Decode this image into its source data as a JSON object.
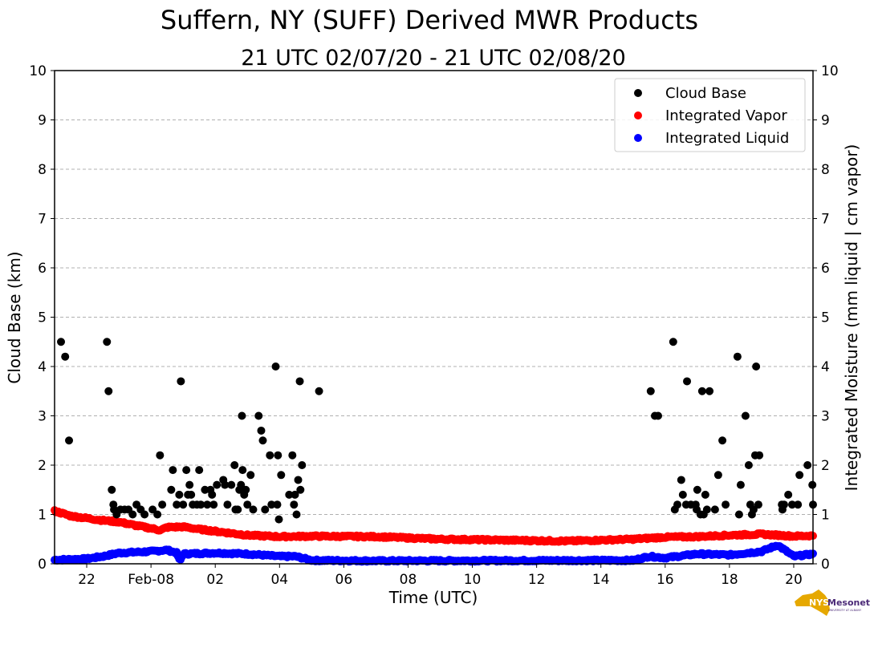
{
  "chart_data": {
    "type": "scatter",
    "title": "Suffern, NY (SUFF) Derived MWR Products",
    "subtitle": "21 UTC 02/07/20 - 21 UTC 02/08/20",
    "xlabel": "Time (UTC)",
    "ylabel": "Cloud Base (km)",
    "ylabel_right": "Integrated Moisture (mm liquid | cm vapor)",
    "x_units": "hours after 21 UTC 02/07/20",
    "xlim": [
      0,
      23.6
    ],
    "ylim": [
      0,
      10
    ],
    "ylim_right": [
      0,
      10
    ],
    "grid": true,
    "legend_position": "top-right",
    "x_ticks": [
      {
        "x": 1,
        "label": "22"
      },
      {
        "x": 3,
        "label": "Feb-08"
      },
      {
        "x": 5,
        "label": "02"
      },
      {
        "x": 7,
        "label": "04"
      },
      {
        "x": 9,
        "label": "06"
      },
      {
        "x": 11,
        "label": "08"
      },
      {
        "x": 13,
        "label": "10"
      },
      {
        "x": 15,
        "label": "12"
      },
      {
        "x": 17,
        "label": "14"
      },
      {
        "x": 19,
        "label": "16"
      },
      {
        "x": 21,
        "label": "18"
      },
      {
        "x": 23,
        "label": "20"
      }
    ],
    "y_ticks": [
      "0",
      "1",
      "2",
      "3",
      "4",
      "5",
      "6",
      "7",
      "8",
      "9",
      "10"
    ],
    "series": [
      {
        "name": "Cloud Base",
        "color": "#000000",
        "points": [
          [
            0.2,
            4.5
          ],
          [
            0.33,
            4.2
          ],
          [
            0.45,
            2.5
          ],
          [
            1.63,
            4.5
          ],
          [
            1.68,
            3.5
          ],
          [
            1.78,
            1.5
          ],
          [
            1.83,
            1.2
          ],
          [
            1.85,
            1.1
          ],
          [
            1.93,
            1.0
          ],
          [
            2.05,
            1.1
          ],
          [
            2.18,
            1.1
          ],
          [
            2.3,
            1.1
          ],
          [
            2.43,
            1.0
          ],
          [
            2.55,
            1.2
          ],
          [
            2.68,
            1.1
          ],
          [
            2.8,
            1.0
          ],
          [
            3.05,
            1.1
          ],
          [
            3.2,
            1.0
          ],
          [
            3.28,
            2.2
          ],
          [
            3.35,
            1.2
          ],
          [
            3.63,
            1.5
          ],
          [
            3.68,
            1.9
          ],
          [
            3.8,
            1.2
          ],
          [
            3.88,
            1.4
          ],
          [
            3.93,
            3.7
          ],
          [
            4.0,
            1.2
          ],
          [
            4.1,
            1.9
          ],
          [
            4.15,
            1.4
          ],
          [
            4.2,
            1.6
          ],
          [
            4.25,
            1.4
          ],
          [
            4.3,
            1.2
          ],
          [
            4.43,
            1.2
          ],
          [
            4.5,
            1.9
          ],
          [
            4.55,
            1.2
          ],
          [
            4.68,
            1.5
          ],
          [
            4.75,
            1.2
          ],
          [
            4.85,
            1.5
          ],
          [
            4.9,
            1.4
          ],
          [
            4.95,
            1.2
          ],
          [
            5.05,
            1.6
          ],
          [
            5.25,
            1.7
          ],
          [
            5.3,
            1.6
          ],
          [
            5.38,
            1.2
          ],
          [
            5.5,
            1.6
          ],
          [
            5.6,
            2.0
          ],
          [
            5.63,
            1.1
          ],
          [
            5.7,
            1.1
          ],
          [
            5.75,
            1.5
          ],
          [
            5.8,
            1.6
          ],
          [
            5.83,
            3.0
          ],
          [
            5.85,
            1.9
          ],
          [
            5.9,
            1.4
          ],
          [
            5.95,
            1.5
          ],
          [
            6.0,
            1.2
          ],
          [
            6.1,
            1.8
          ],
          [
            6.18,
            1.1
          ],
          [
            6.35,
            3.0
          ],
          [
            6.43,
            2.7
          ],
          [
            6.48,
            2.5
          ],
          [
            6.55,
            1.1
          ],
          [
            6.7,
            2.2
          ],
          [
            6.75,
            1.2
          ],
          [
            6.88,
            4.0
          ],
          [
            6.93,
            1.2
          ],
          [
            6.95,
            2.2
          ],
          [
            6.98,
            0.9
          ],
          [
            7.05,
            1.8
          ],
          [
            7.3,
            1.4
          ],
          [
            7.4,
            2.2
          ],
          [
            7.45,
            1.2
          ],
          [
            7.48,
            1.4
          ],
          [
            7.53,
            1.0
          ],
          [
            7.58,
            1.7
          ],
          [
            7.63,
            3.7
          ],
          [
            7.65,
            1.5
          ],
          [
            7.7,
            2.0
          ],
          [
            8.23,
            3.5
          ],
          [
            18.55,
            3.5
          ],
          [
            18.68,
            3.0
          ],
          [
            18.78,
            3.0
          ],
          [
            19.25,
            4.5
          ],
          [
            19.3,
            1.1
          ],
          [
            19.38,
            1.2
          ],
          [
            19.5,
            1.7
          ],
          [
            19.55,
            1.4
          ],
          [
            19.65,
            1.2
          ],
          [
            19.68,
            3.7
          ],
          [
            19.8,
            1.2
          ],
          [
            19.95,
            1.2
          ],
          [
            19.98,
            1.1
          ],
          [
            20.0,
            1.5
          ],
          [
            20.1,
            1.0
          ],
          [
            20.15,
            3.5
          ],
          [
            20.2,
            1.0
          ],
          [
            20.25,
            1.4
          ],
          [
            20.3,
            1.1
          ],
          [
            20.38,
            3.5
          ],
          [
            20.55,
            1.1
          ],
          [
            20.65,
            1.8
          ],
          [
            20.78,
            2.5
          ],
          [
            20.88,
            1.2
          ],
          [
            21.25,
            4.2
          ],
          [
            21.3,
            1.0
          ],
          [
            21.35,
            1.6
          ],
          [
            21.5,
            3.0
          ],
          [
            21.6,
            2.0
          ],
          [
            21.65,
            1.2
          ],
          [
            21.7,
            1.0
          ],
          [
            21.75,
            1.1
          ],
          [
            21.8,
            2.2
          ],
          [
            21.83,
            4.0
          ],
          [
            21.9,
            1.2
          ],
          [
            21.93,
            2.2
          ],
          [
            22.63,
            1.2
          ],
          [
            22.65,
            1.1
          ],
          [
            22.7,
            1.2
          ],
          [
            22.83,
            1.4
          ],
          [
            22.95,
            1.2
          ],
          [
            23.13,
            1.2
          ],
          [
            23.18,
            1.8
          ],
          [
            23.43,
            2.0
          ],
          [
            23.58,
            1.6
          ],
          [
            23.6,
            1.2
          ]
        ]
      },
      {
        "name": "Integrated Vapor",
        "color": "#ff0000",
        "axis": "right",
        "trend": [
          [
            0,
            1.07
          ],
          [
            0.5,
            0.97
          ],
          [
            1.5,
            0.88
          ],
          [
            2,
            0.85
          ],
          [
            2.5,
            0.78
          ],
          [
            3,
            0.72
          ],
          [
            3.3,
            0.68
          ],
          [
            3.5,
            0.74
          ],
          [
            4,
            0.75
          ],
          [
            4.5,
            0.7
          ],
          [
            5,
            0.66
          ],
          [
            6,
            0.58
          ],
          [
            7,
            0.55
          ],
          [
            8,
            0.56
          ],
          [
            10,
            0.55
          ],
          [
            12,
            0.5
          ],
          [
            14,
            0.48
          ],
          [
            16,
            0.46
          ],
          [
            18,
            0.5
          ],
          [
            19,
            0.54
          ],
          [
            20,
            0.55
          ],
          [
            21,
            0.58
          ],
          [
            22,
            0.6
          ],
          [
            23,
            0.56
          ],
          [
            23.6,
            0.57
          ]
        ]
      },
      {
        "name": "Integrated Liquid",
        "color": "#0000ff",
        "axis": "right",
        "trend": [
          [
            0,
            0.08
          ],
          [
            1,
            0.1
          ],
          [
            1.5,
            0.15
          ],
          [
            2,
            0.22
          ],
          [
            3,
            0.25
          ],
          [
            3.5,
            0.28
          ],
          [
            3.8,
            0.22
          ],
          [
            3.9,
            0.05
          ],
          [
            4,
            0.2
          ],
          [
            5,
            0.22
          ],
          [
            6,
            0.2
          ],
          [
            7,
            0.15
          ],
          [
            7.5,
            0.15
          ],
          [
            8,
            0.07
          ],
          [
            10,
            0.06
          ],
          [
            18,
            0.07
          ],
          [
            18.5,
            0.15
          ],
          [
            19,
            0.12
          ],
          [
            20,
            0.2
          ],
          [
            21,
            0.18
          ],
          [
            22,
            0.25
          ],
          [
            22.5,
            0.38
          ],
          [
            23,
            0.15
          ],
          [
            23.6,
            0.2
          ]
        ]
      }
    ]
  },
  "logo": {
    "text": "NYS Mesonet",
    "subtext": "UNIVERSITY AT ALBANY"
  }
}
